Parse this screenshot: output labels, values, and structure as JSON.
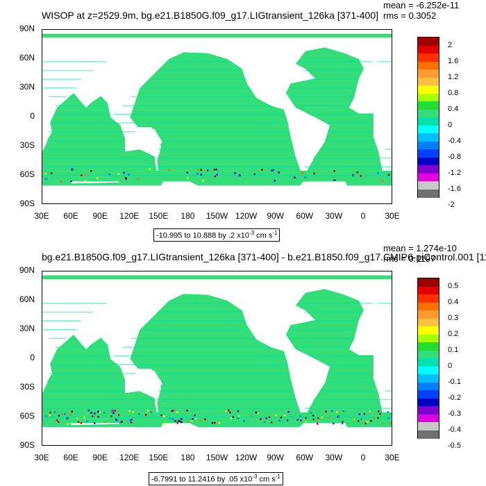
{
  "chart_data": [
    {
      "type": "heatmap",
      "title": "WISOP at z=2529.9m, bg.e21.B1850G.f09_g17.LIGtransient_126ka [371-400]",
      "stats": {
        "mean": "mean = -6.252e-11",
        "rms": "rms = 0.3052"
      },
      "range_label": "-10.995 to 10.888 by .2 x10",
      "range_exp": "-3",
      "range_unit": " cm s",
      "range_unit_exp": "-1",
      "y_ticks": [
        "90N",
        "60N",
        "30N",
        "0",
        "30S",
        "60S",
        "90S"
      ],
      "x_ticks": [
        "30E",
        "60E",
        "90E",
        "120E",
        "150E",
        "180",
        "150W",
        "120W",
        "90W",
        "60W",
        "30W",
        "0",
        "30E"
      ],
      "ylim": [
        -90,
        90
      ],
      "xlim": [
        30,
        390
      ],
      "colorbar_labels": [
        "2",
        "1.6",
        "1.2",
        "0.8",
        "0.4",
        "0",
        "-0.4",
        "-0.8",
        "-1.2",
        "-1.6",
        "-2"
      ],
      "dominant_color": "#33dd77"
    },
    {
      "type": "heatmap",
      "title": "bg.e21.B1850G.f09_g17.LIGtransient_126ka [371-400] - b.e21.B1850.f09_g17.CMIP6-piControl.001 [11",
      "stats": {
        "mean": "mean = 1.274e-10",
        "rms": "rms = 0.1197"
      },
      "range_label": "-6.7991 to 11.2416 by .05 x10",
      "range_exp": "-3",
      "range_unit": " cm s",
      "range_unit_exp": "-1",
      "y_ticks": [
        "90N",
        "60N",
        "30N",
        "0",
        "30S",
        "60S",
        "90S"
      ],
      "x_ticks": [
        "30E",
        "60E",
        "90E",
        "120E",
        "150E",
        "180",
        "150W",
        "120W",
        "90W",
        "60W",
        "30W",
        "0",
        "30E"
      ],
      "ylim": [
        -90,
        90
      ],
      "xlim": [
        30,
        390
      ],
      "colorbar_labels": [
        "0.5",
        "0.4",
        "0.3",
        "0.2",
        "0.1",
        "0",
        "-0.1",
        "-0.2",
        "-0.3",
        "-0.4",
        "-0.5"
      ],
      "dominant_color": "#33dd77"
    }
  ],
  "colorbar_colors": [
    "#a00000",
    "#e00000",
    "#ff3000",
    "#ff7000",
    "#ff9a30",
    "#ffc040",
    "#ffff00",
    "#a8ff00",
    "#22dd33",
    "#33dd77",
    "#00e0b0",
    "#00ffff",
    "#00bfff",
    "#0080ff",
    "#0040ff",
    "#0000c0",
    "#8000d0",
    "#e000e0",
    "#c8c8c8",
    "#707070"
  ]
}
